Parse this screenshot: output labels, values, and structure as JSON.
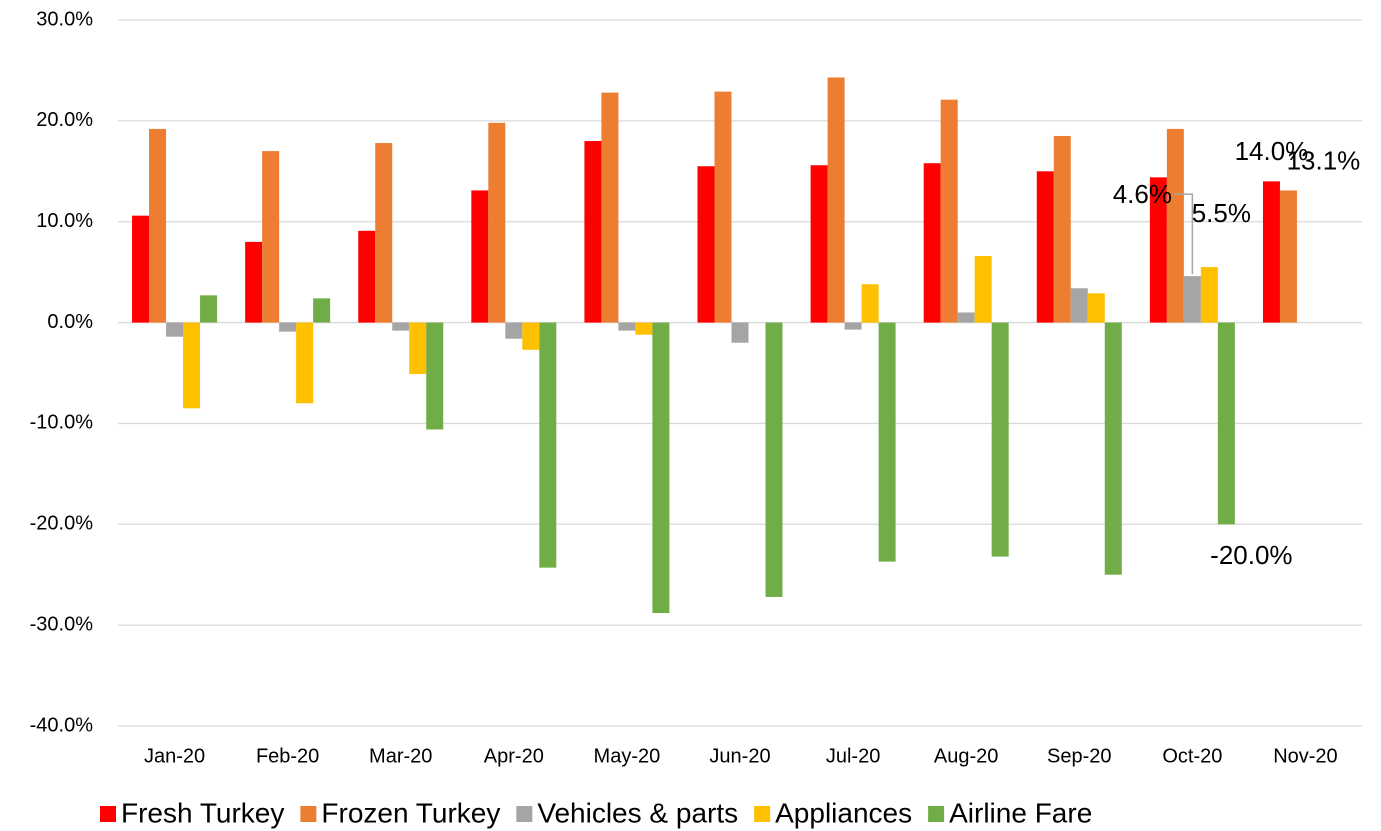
{
  "chart_data": {
    "type": "bar",
    "categories": [
      "Jan-20",
      "Feb-20",
      "Mar-20",
      "Apr-20",
      "May-20",
      "Jun-20",
      "Jul-20",
      "Aug-20",
      "Sep-20",
      "Oct-20",
      "Nov-20"
    ],
    "series": [
      {
        "name": "Fresh Turkey",
        "color": "#ff0000",
        "values": [
          10.6,
          8.0,
          9.1,
          13.1,
          18.0,
          15.5,
          15.6,
          15.8,
          15.0,
          14.4,
          14.0
        ],
        "value_labels": [
          null,
          null,
          null,
          null,
          null,
          null,
          null,
          null,
          null,
          null,
          "14.0%"
        ]
      },
      {
        "name": "Frozen Turkey",
        "color": "#ed7d31",
        "values": [
          19.2,
          17.0,
          17.8,
          19.8,
          22.8,
          22.9,
          24.3,
          22.1,
          18.5,
          19.2,
          13.1
        ],
        "value_labels": [
          null,
          null,
          null,
          null,
          null,
          null,
          null,
          null,
          null,
          null,
          "13.1%"
        ]
      },
      {
        "name": "Vehicles & parts",
        "color": "#a5a5a5",
        "values": [
          -1.4,
          -0.9,
          -0.8,
          -1.6,
          -0.8,
          -2.0,
          -0.7,
          1.0,
          3.4,
          4.6,
          null
        ],
        "value_labels": [
          null,
          null,
          null,
          null,
          null,
          null,
          null,
          null,
          null,
          "4.6%",
          null
        ]
      },
      {
        "name": "Appliances",
        "color": "#ffc000",
        "values": [
          -8.5,
          -8.0,
          -5.1,
          -2.7,
          -1.2,
          null,
          3.8,
          6.6,
          2.9,
          5.5,
          null
        ],
        "value_labels": [
          null,
          null,
          null,
          null,
          null,
          null,
          null,
          null,
          null,
          "5.5%",
          null
        ]
      },
      {
        "name": "Airline Fare",
        "color": "#70ad47",
        "values": [
          2.7,
          2.4,
          -10.6,
          -24.3,
          -28.8,
          -27.2,
          -23.7,
          -23.2,
          -25.0,
          -20.0,
          null
        ],
        "value_labels": [
          null,
          null,
          null,
          null,
          null,
          null,
          null,
          null,
          null,
          "-20.0%",
          null
        ]
      }
    ],
    "ylim": [
      -40,
      30
    ],
    "yticks": [
      {
        "value": -40,
        "label": "-40.0%"
      },
      {
        "value": -30,
        "label": "-30.0%"
      },
      {
        "value": -20,
        "label": "-20.0%"
      },
      {
        "value": -10,
        "label": "-10.0%"
      },
      {
        "value": 0,
        "label": "0.0%"
      },
      {
        "value": 10,
        "label": "10.0%"
      },
      {
        "value": 20,
        "label": "20.0%"
      },
      {
        "value": 30,
        "label": "30.0%"
      }
    ],
    "grid": true,
    "legend": "bottom"
  }
}
